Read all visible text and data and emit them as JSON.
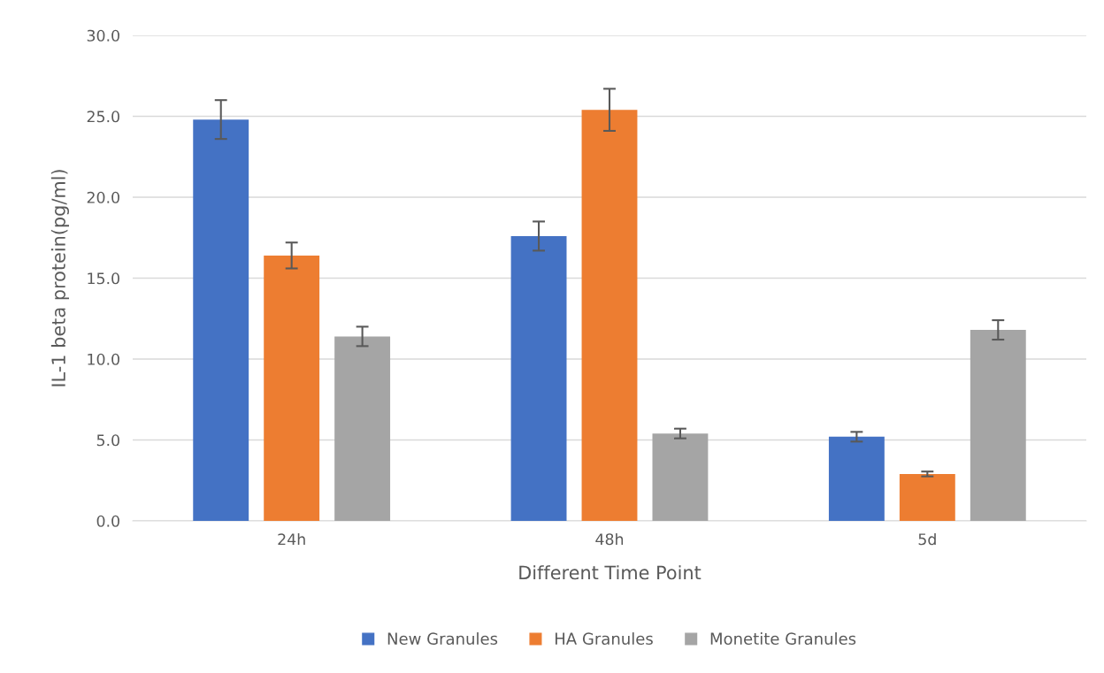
{
  "chart_data": {
    "type": "bar",
    "xlabel": "Different Time Point",
    "ylabel": "IL-1 beta protein(pg/ml)",
    "categories": [
      "24h",
      "48h",
      "5d"
    ],
    "series": [
      {
        "name": "New Granules",
        "color": "#4472c4",
        "values": [
          24.8,
          17.6,
          5.2
        ],
        "errors": [
          1.2,
          0.9,
          0.3
        ]
      },
      {
        "name": "HA Granules",
        "color": "#ed7d31",
        "values": [
          16.4,
          25.4,
          2.9
        ],
        "errors": [
          0.8,
          1.3,
          0.15
        ]
      },
      {
        "name": "Monetite Granules",
        "color": "#a5a5a5",
        "values": [
          11.4,
          5.4,
          11.8
        ],
        "errors": [
          0.6,
          0.3,
          0.6
        ]
      }
    ],
    "ylim": [
      0,
      30
    ],
    "yticks": [
      {
        "value": 0,
        "label": "0.0"
      },
      {
        "value": 5,
        "label": "5.0"
      },
      {
        "value": 10,
        "label": "10.0"
      },
      {
        "value": 15,
        "label": "15.0"
      },
      {
        "value": 20,
        "label": "20.0"
      },
      {
        "value": 25,
        "label": "25.0"
      },
      {
        "value": 30,
        "label": "30.0"
      }
    ],
    "grid": "y",
    "legend": "bottom"
  }
}
